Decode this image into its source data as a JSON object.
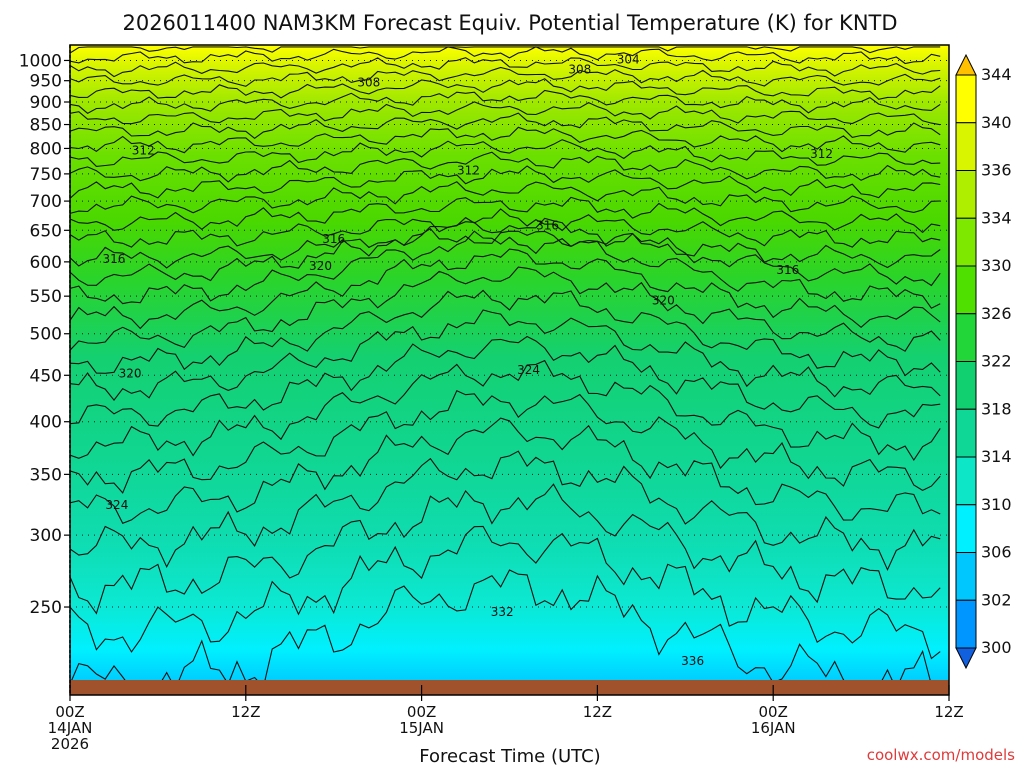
{
  "chart_data": {
    "type": "contour",
    "title": "2026011400 NAM3KM Forecast Equiv. Potential Temperature (K) for KNTD",
    "xlabel": "Forecast Time (UTC)",
    "credit": "coolwx.com/models",
    "x_range_hours": [
      0,
      60
    ],
    "x_ticks": [
      {
        "hour": 0,
        "lines": [
          "00Z",
          "14JAN",
          "2026"
        ]
      },
      {
        "hour": 12,
        "lines": [
          "12Z"
        ]
      },
      {
        "hour": 24,
        "lines": [
          "00Z",
          "15JAN"
        ]
      },
      {
        "hour": 36,
        "lines": [
          "12Z"
        ]
      },
      {
        "hour": 48,
        "lines": [
          "00Z",
          "16JAN"
        ]
      },
      {
        "hour": 60,
        "lines": [
          "12Z"
        ]
      }
    ],
    "y_range_hpa": [
      1040,
      200
    ],
    "y_ticks_hpa": [
      250,
      300,
      350,
      400,
      450,
      500,
      550,
      600,
      650,
      700,
      750,
      800,
      850,
      900,
      950,
      1000
    ],
    "colorbar_labels": [
      344,
      340,
      336,
      334,
      330,
      326,
      322,
      318,
      314,
      310,
      306,
      302,
      300
    ],
    "colorbar_colors": [
      "#ffc000",
      "#ffff00",
      "#d9f500",
      "#b0ee00",
      "#7fe800",
      "#4fe000",
      "#22d63a",
      "#10d070",
      "#0fd896",
      "#0ee6c8",
      "#00f0ff",
      "#00c8ff",
      "#0096ff",
      "#1060e0"
    ],
    "contour_interval_K": 2,
    "contour_labels": [
      {
        "value": "336",
        "hour": 42.5,
        "p": 218
      },
      {
        "value": "332",
        "hour": 29.5,
        "p": 247
      },
      {
        "value": "324",
        "hour": 3.2,
        "p": 324
      },
      {
        "value": "324",
        "hour": 31.3,
        "p": 456
      },
      {
        "value": "320",
        "hour": 4.1,
        "p": 452
      },
      {
        "value": "320",
        "hour": 17.1,
        "p": 594
      },
      {
        "value": "320",
        "hour": 40.5,
        "p": 544
      },
      {
        "value": "316",
        "hour": 3.0,
        "p": 604
      },
      {
        "value": "316",
        "hour": 18.0,
        "p": 636
      },
      {
        "value": "316",
        "hour": 32.6,
        "p": 658
      },
      {
        "value": "316",
        "hour": 49.0,
        "p": 588
      },
      {
        "value": "312",
        "hour": 5.0,
        "p": 796
      },
      {
        "value": "312",
        "hour": 27.2,
        "p": 756
      },
      {
        "value": "312",
        "hour": 51.3,
        "p": 789
      },
      {
        "value": "308",
        "hour": 20.4,
        "p": 946
      },
      {
        "value": "308",
        "hour": 34.8,
        "p": 977
      },
      {
        "value": "304",
        "hour": 38.1,
        "p": 1002
      }
    ]
  }
}
